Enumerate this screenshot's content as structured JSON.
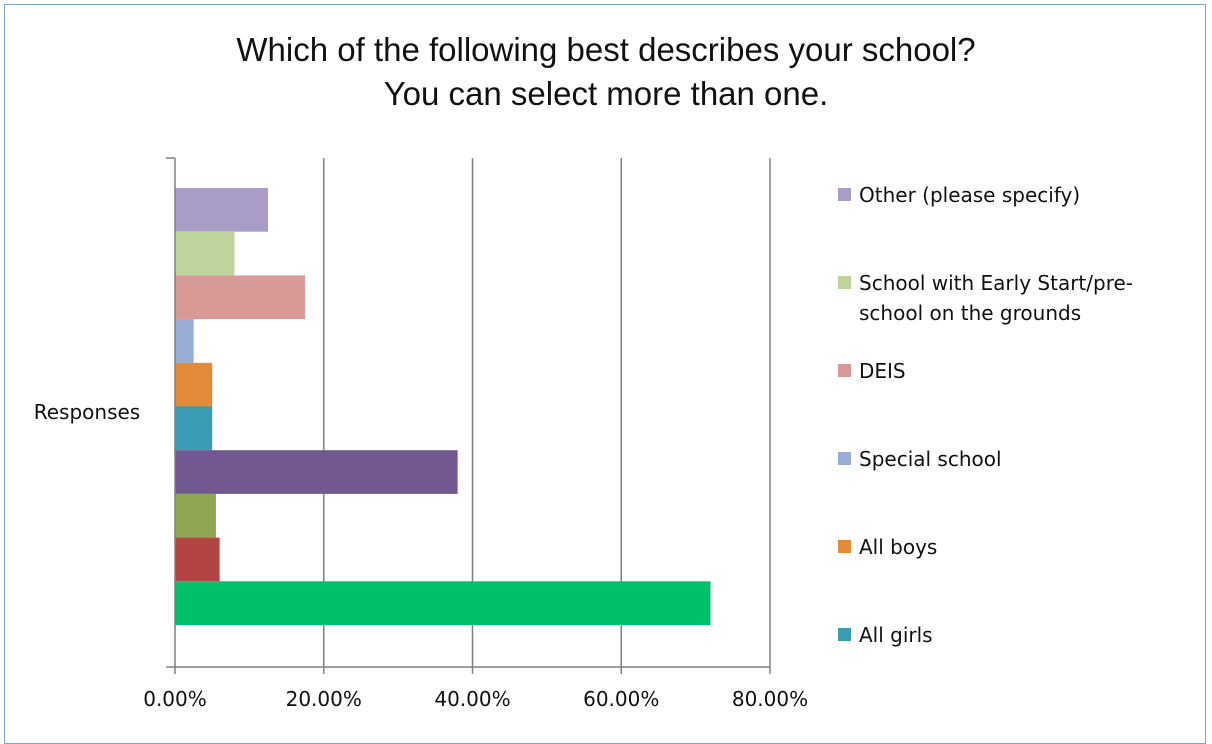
{
  "chart_data": {
    "type": "bar",
    "orientation": "horizontal",
    "title_lines": [
      "Which of the following best describes your school?",
      "You can select more than one."
    ],
    "categories": [
      "Responses"
    ],
    "x_axis": {
      "min": 0,
      "max": 0.8,
      "ticks": [
        0,
        0.2,
        0.4,
        0.6,
        0.8
      ],
      "tick_labels": [
        "0.00%",
        "20.00%",
        "40.00%",
        "60.00%",
        "80.00%"
      ]
    },
    "grid": true,
    "legend_position": "right",
    "series": [
      {
        "name": "Other (please specify)",
        "value": 0.125,
        "color": "#a99cc6",
        "in_legend": true
      },
      {
        "name": "School with Early Start/pre-school on the grounds",
        "legend_lines": [
          "School with Early Start/pre-",
          "school on the grounds"
        ],
        "value": 0.08,
        "color": "#bfd49c",
        "in_legend": true
      },
      {
        "name": "DEIS",
        "value": 0.175,
        "color": "#d89a97",
        "in_legend": true
      },
      {
        "name": "Special school",
        "value": 0.025,
        "color": "#98acd6",
        "in_legend": true
      },
      {
        "name": "All boys",
        "value": 0.05,
        "color": "#e38a3b",
        "in_legend": true
      },
      {
        "name": "All girls",
        "value": 0.05,
        "color": "#3b9bb3",
        "in_legend": true
      },
      {
        "name": "",
        "value": 0.38,
        "color": "#725890",
        "in_legend": false
      },
      {
        "name": "",
        "value": 0.055,
        "color": "#8ea652",
        "in_legend": false
      },
      {
        "name": "",
        "value": 0.06,
        "color": "#b24443",
        "in_legend": false
      },
      {
        "name": "",
        "value": 0.72,
        "color": "#00c06a",
        "in_legend": false
      }
    ]
  }
}
